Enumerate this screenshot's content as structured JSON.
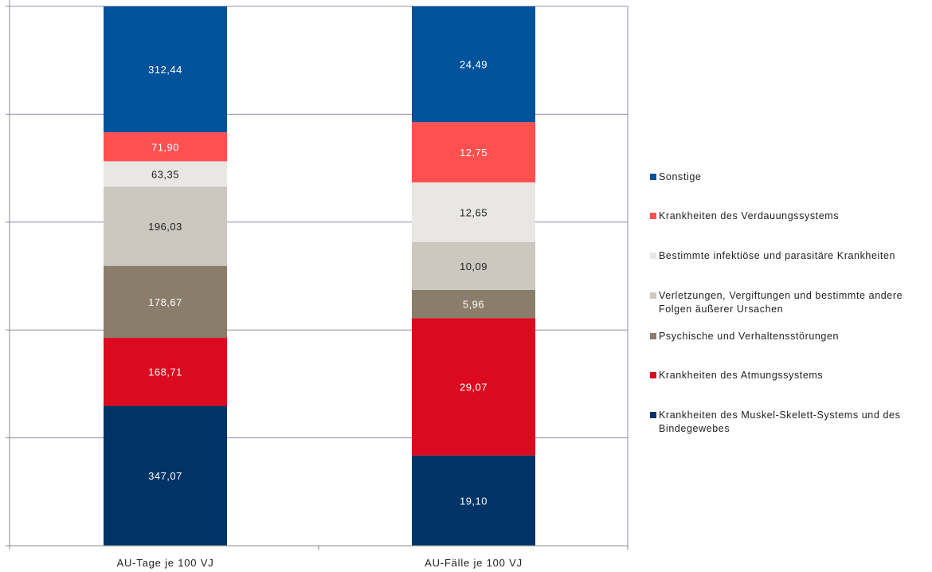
{
  "chart_data": {
    "type": "stacked-bar",
    "categories": [
      "AU-Tage je 100 VJ",
      "AU-Fälle je 100 VJ"
    ],
    "series": [
      {
        "name": "Krankheiten des Muskel-Skelett-Systems und des Bindegewebes",
        "color": "#003366",
        "values": [
          347.07,
          19.1
        ]
      },
      {
        "name": "Krankheiten des Atmungssystems",
        "color": "#DC0A1E",
        "values": [
          168.71,
          29.07
        ]
      },
      {
        "name": "Psychische und Verhaltensstörungen",
        "color": "#8B7D6B",
        "values": [
          178.67,
          5.96
        ]
      },
      {
        "name": "Verletzungen, Vergiftungen und bestimmte andere Folgen äußerer Ursachen",
        "color": "#CCC8C0",
        "values": [
          196.03,
          10.09
        ]
      },
      {
        "name": "Bestimmte infektiöse und parasitäre Krankheiten",
        "color": "#E8E7E3",
        "values": [
          63.35,
          12.65
        ]
      },
      {
        "name": "Krankheiten des Verdauungssystems",
        "color": "#FF5050",
        "values": [
          71.9,
          12.75
        ]
      },
      {
        "name": "Sonstige",
        "color": "#00529B",
        "values": [
          312.44,
          24.49
        ]
      }
    ],
    "data_labels": [
      [
        "347,07",
        "168,71",
        "178,67",
        "196,03",
        "63,35",
        "71,90",
        "312,44"
      ],
      [
        "19,10",
        "29,07",
        "5,96",
        "10,09",
        "12,65",
        "12,75",
        "24,49"
      ]
    ],
    "normalized": "percent",
    "ylim": [
      0,
      100
    ],
    "gridlines": true,
    "legend_position": "right",
    "legend_order": [
      "Sonstige",
      "Krankheiten des Verdauungssystems",
      "Bestimmte infektiöse und parasitäre Krankheiten",
      "Verletzungen, Vergiftungen und bestimmte andere Folgen äußerer Ursachen",
      "Psychische und Verhaltensstörungen",
      "Krankheiten des Atmungssystems",
      "Krankheiten des Muskel-Skelett-Systems und des Bindegewebes"
    ],
    "title": "",
    "xlabel": "",
    "ylabel": ""
  }
}
